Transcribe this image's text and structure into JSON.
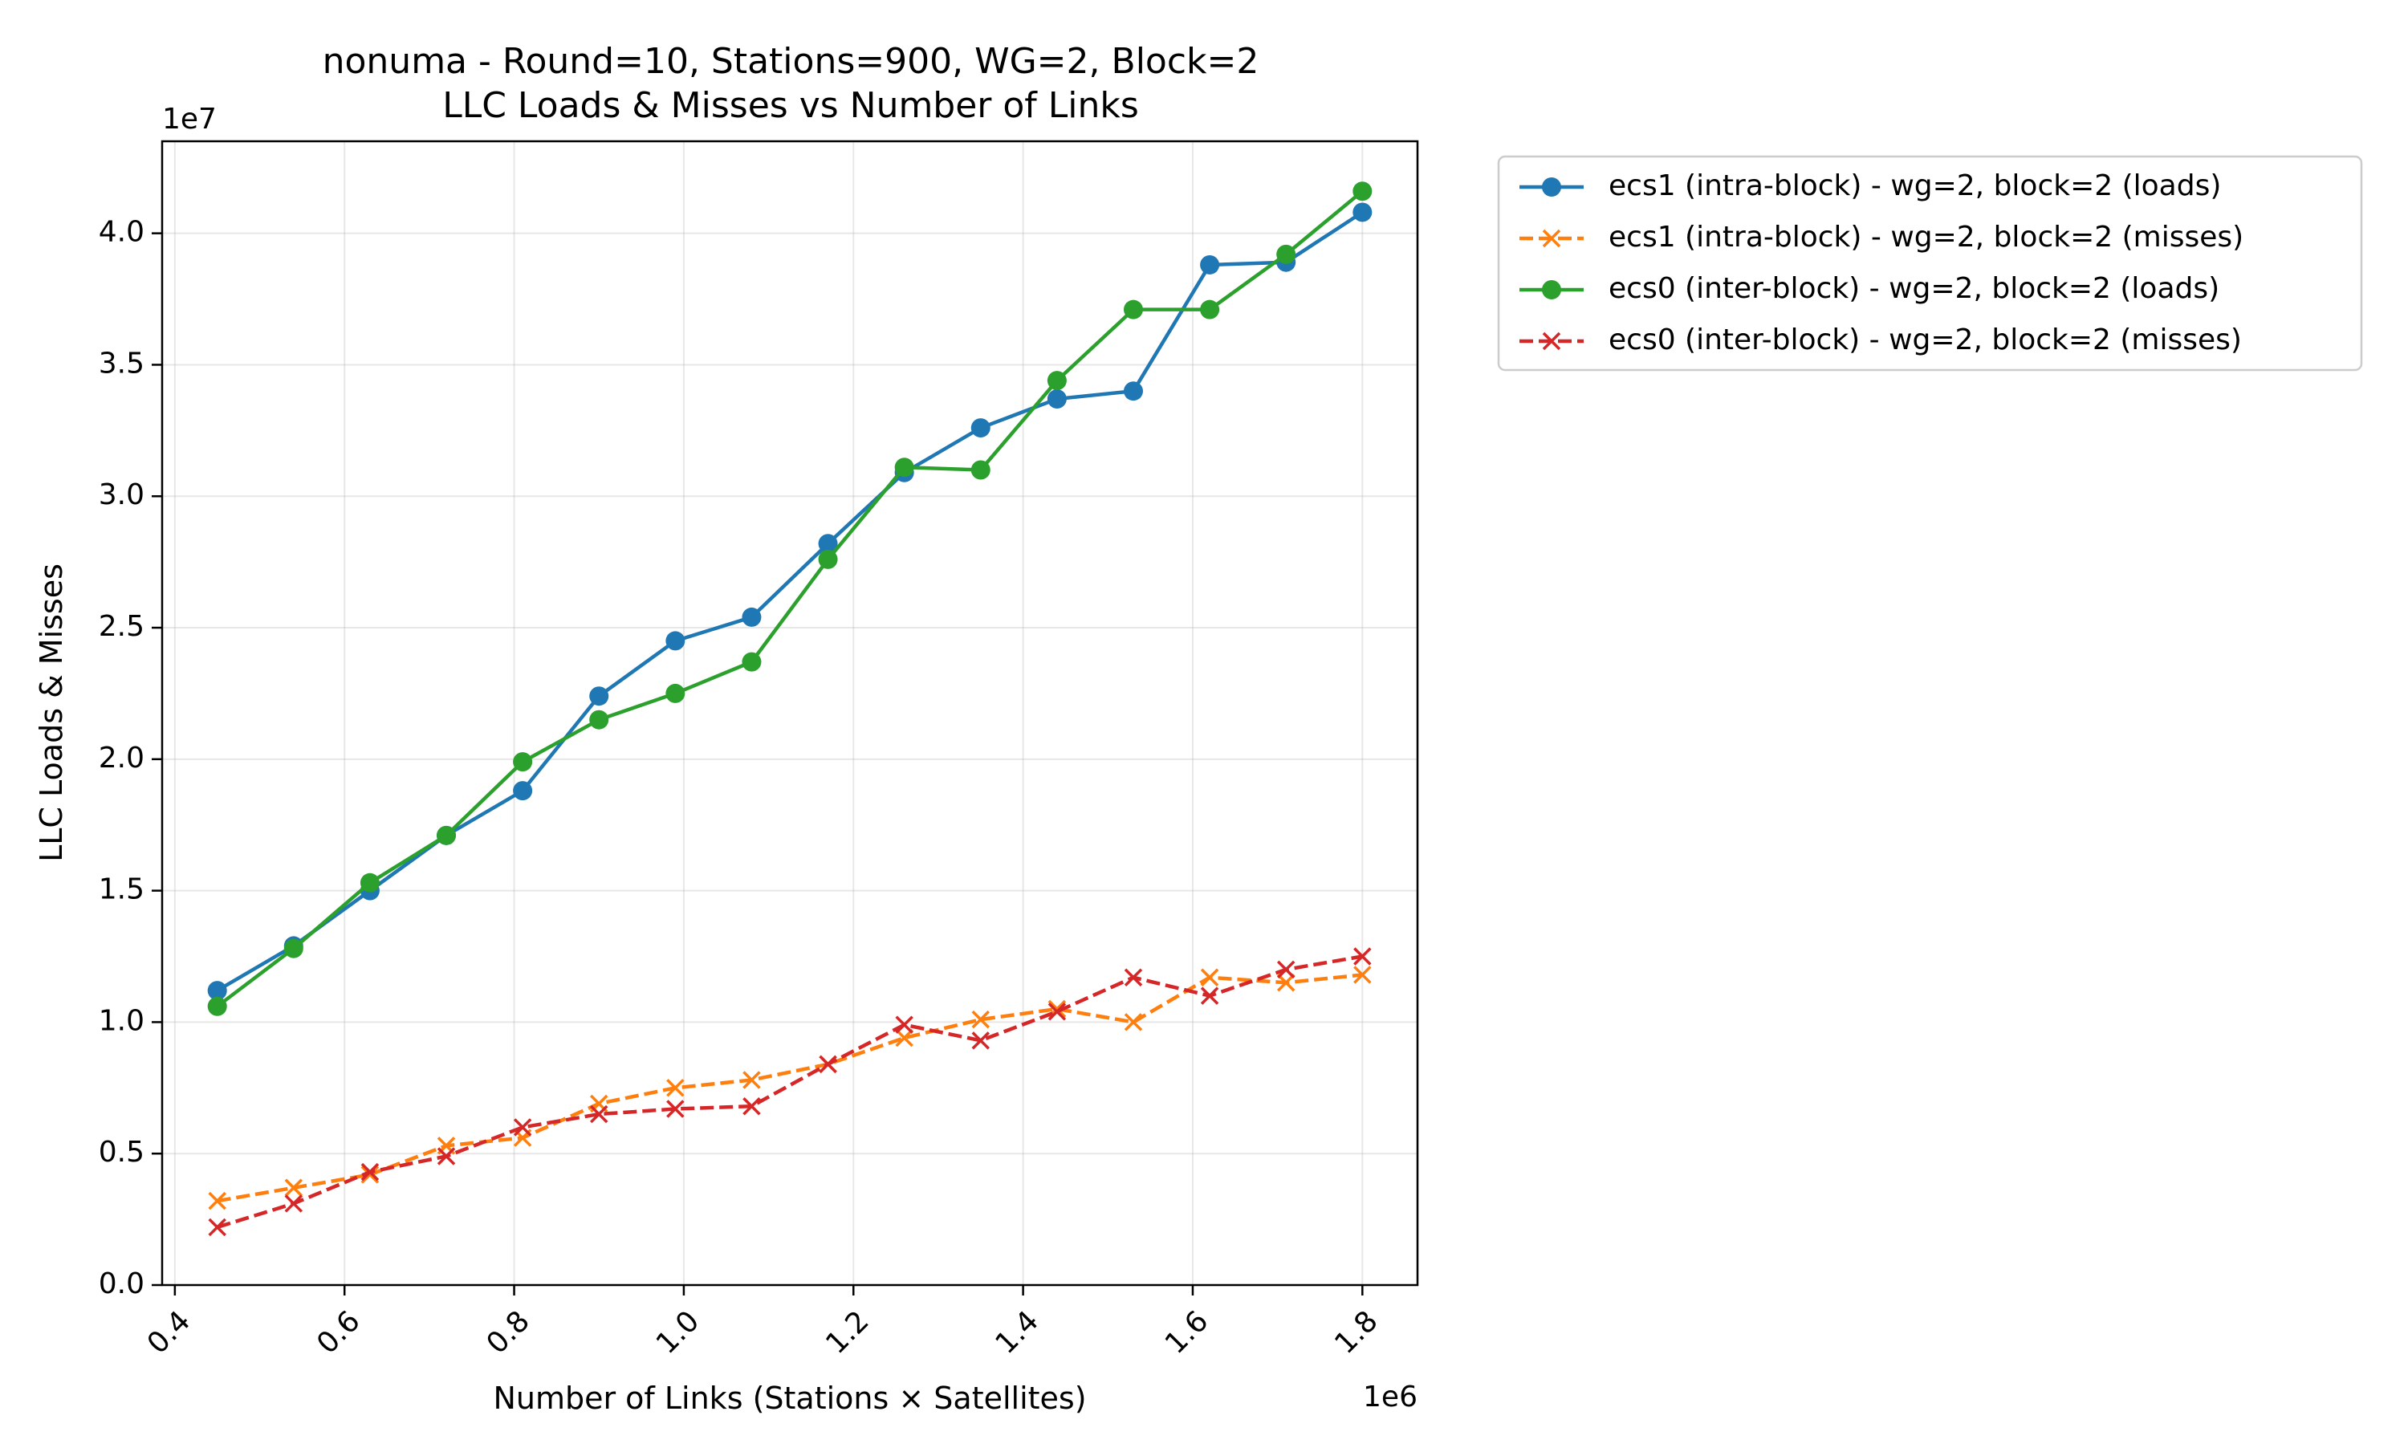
{
  "chart_data": {
    "type": "line",
    "title_line1": "nonuma - Round=10, Stations=900, WG=2, Block=2",
    "title_line2": "LLC Loads & Misses vs Number of Links",
    "xlabel": "Number of Links (Stations × Satellites)",
    "ylabel": "LLC Loads & Misses",
    "x_offset_label": "1e6",
    "y_offset_label": "1e7",
    "x_multiplier": 1000000,
    "y_multiplier": 10000000,
    "xlim": [
      0.385,
      1.865
    ],
    "ylim": [
      0,
      4.35
    ],
    "x_ticks": [
      0.4,
      0.6,
      0.8,
      1.0,
      1.2,
      1.4,
      1.6,
      1.8
    ],
    "x_tick_labels": [
      "0.4",
      "0.6",
      "0.8",
      "1.0",
      "1.2",
      "1.4",
      "1.6",
      "1.8"
    ],
    "y_ticks": [
      0.0,
      0.5,
      1.0,
      1.5,
      2.0,
      2.5,
      3.0,
      3.5,
      4.0
    ],
    "y_tick_labels": [
      "0.0",
      "0.5",
      "1.0",
      "1.5",
      "2.0",
      "2.5",
      "3.0",
      "3.5",
      "4.0"
    ],
    "grid": true,
    "legend_position": "outside-right-top",
    "x": [
      0.45,
      0.54,
      0.63,
      0.72,
      0.81,
      0.9,
      0.99,
      1.08,
      1.17,
      1.26,
      1.35,
      1.44,
      1.53,
      1.62,
      1.71,
      1.8
    ],
    "series": [
      {
        "name": "ecs1 (intra-block) - wg=2, block=2 (loads)",
        "color": "#1f77b4",
        "marker": "circle",
        "linestyle": "solid",
        "values": [
          1.12,
          1.29,
          1.5,
          1.71,
          1.88,
          2.24,
          2.45,
          2.54,
          2.82,
          3.09,
          3.26,
          3.37,
          3.4,
          3.88,
          3.89,
          4.08
        ]
      },
      {
        "name": "ecs1 (intra-block) - wg=2, block=2 (misses)",
        "color": "#ff7f0e",
        "marker": "x",
        "linestyle": "dashed",
        "values": [
          0.32,
          0.37,
          0.42,
          0.53,
          0.56,
          0.69,
          0.75,
          0.78,
          0.84,
          0.94,
          1.01,
          1.05,
          1.0,
          1.17,
          1.15,
          1.18
        ]
      },
      {
        "name": "ecs0 (inter-block) - wg=2, block=2 (loads)",
        "color": "#2ca02c",
        "marker": "circle",
        "linestyle": "solid",
        "values": [
          1.06,
          1.28,
          1.53,
          1.71,
          1.99,
          2.15,
          2.25,
          2.37,
          2.76,
          3.11,
          3.1,
          3.44,
          3.71,
          3.71,
          3.92,
          4.16
        ]
      },
      {
        "name": "ecs0 (inter-block) - wg=2, block=2 (misses)",
        "color": "#d62728",
        "marker": "x",
        "linestyle": "dashed",
        "values": [
          0.22,
          0.31,
          0.43,
          0.49,
          0.6,
          0.65,
          0.67,
          0.68,
          0.84,
          0.99,
          0.93,
          1.04,
          1.17,
          1.1,
          1.2,
          1.25
        ]
      }
    ]
  }
}
